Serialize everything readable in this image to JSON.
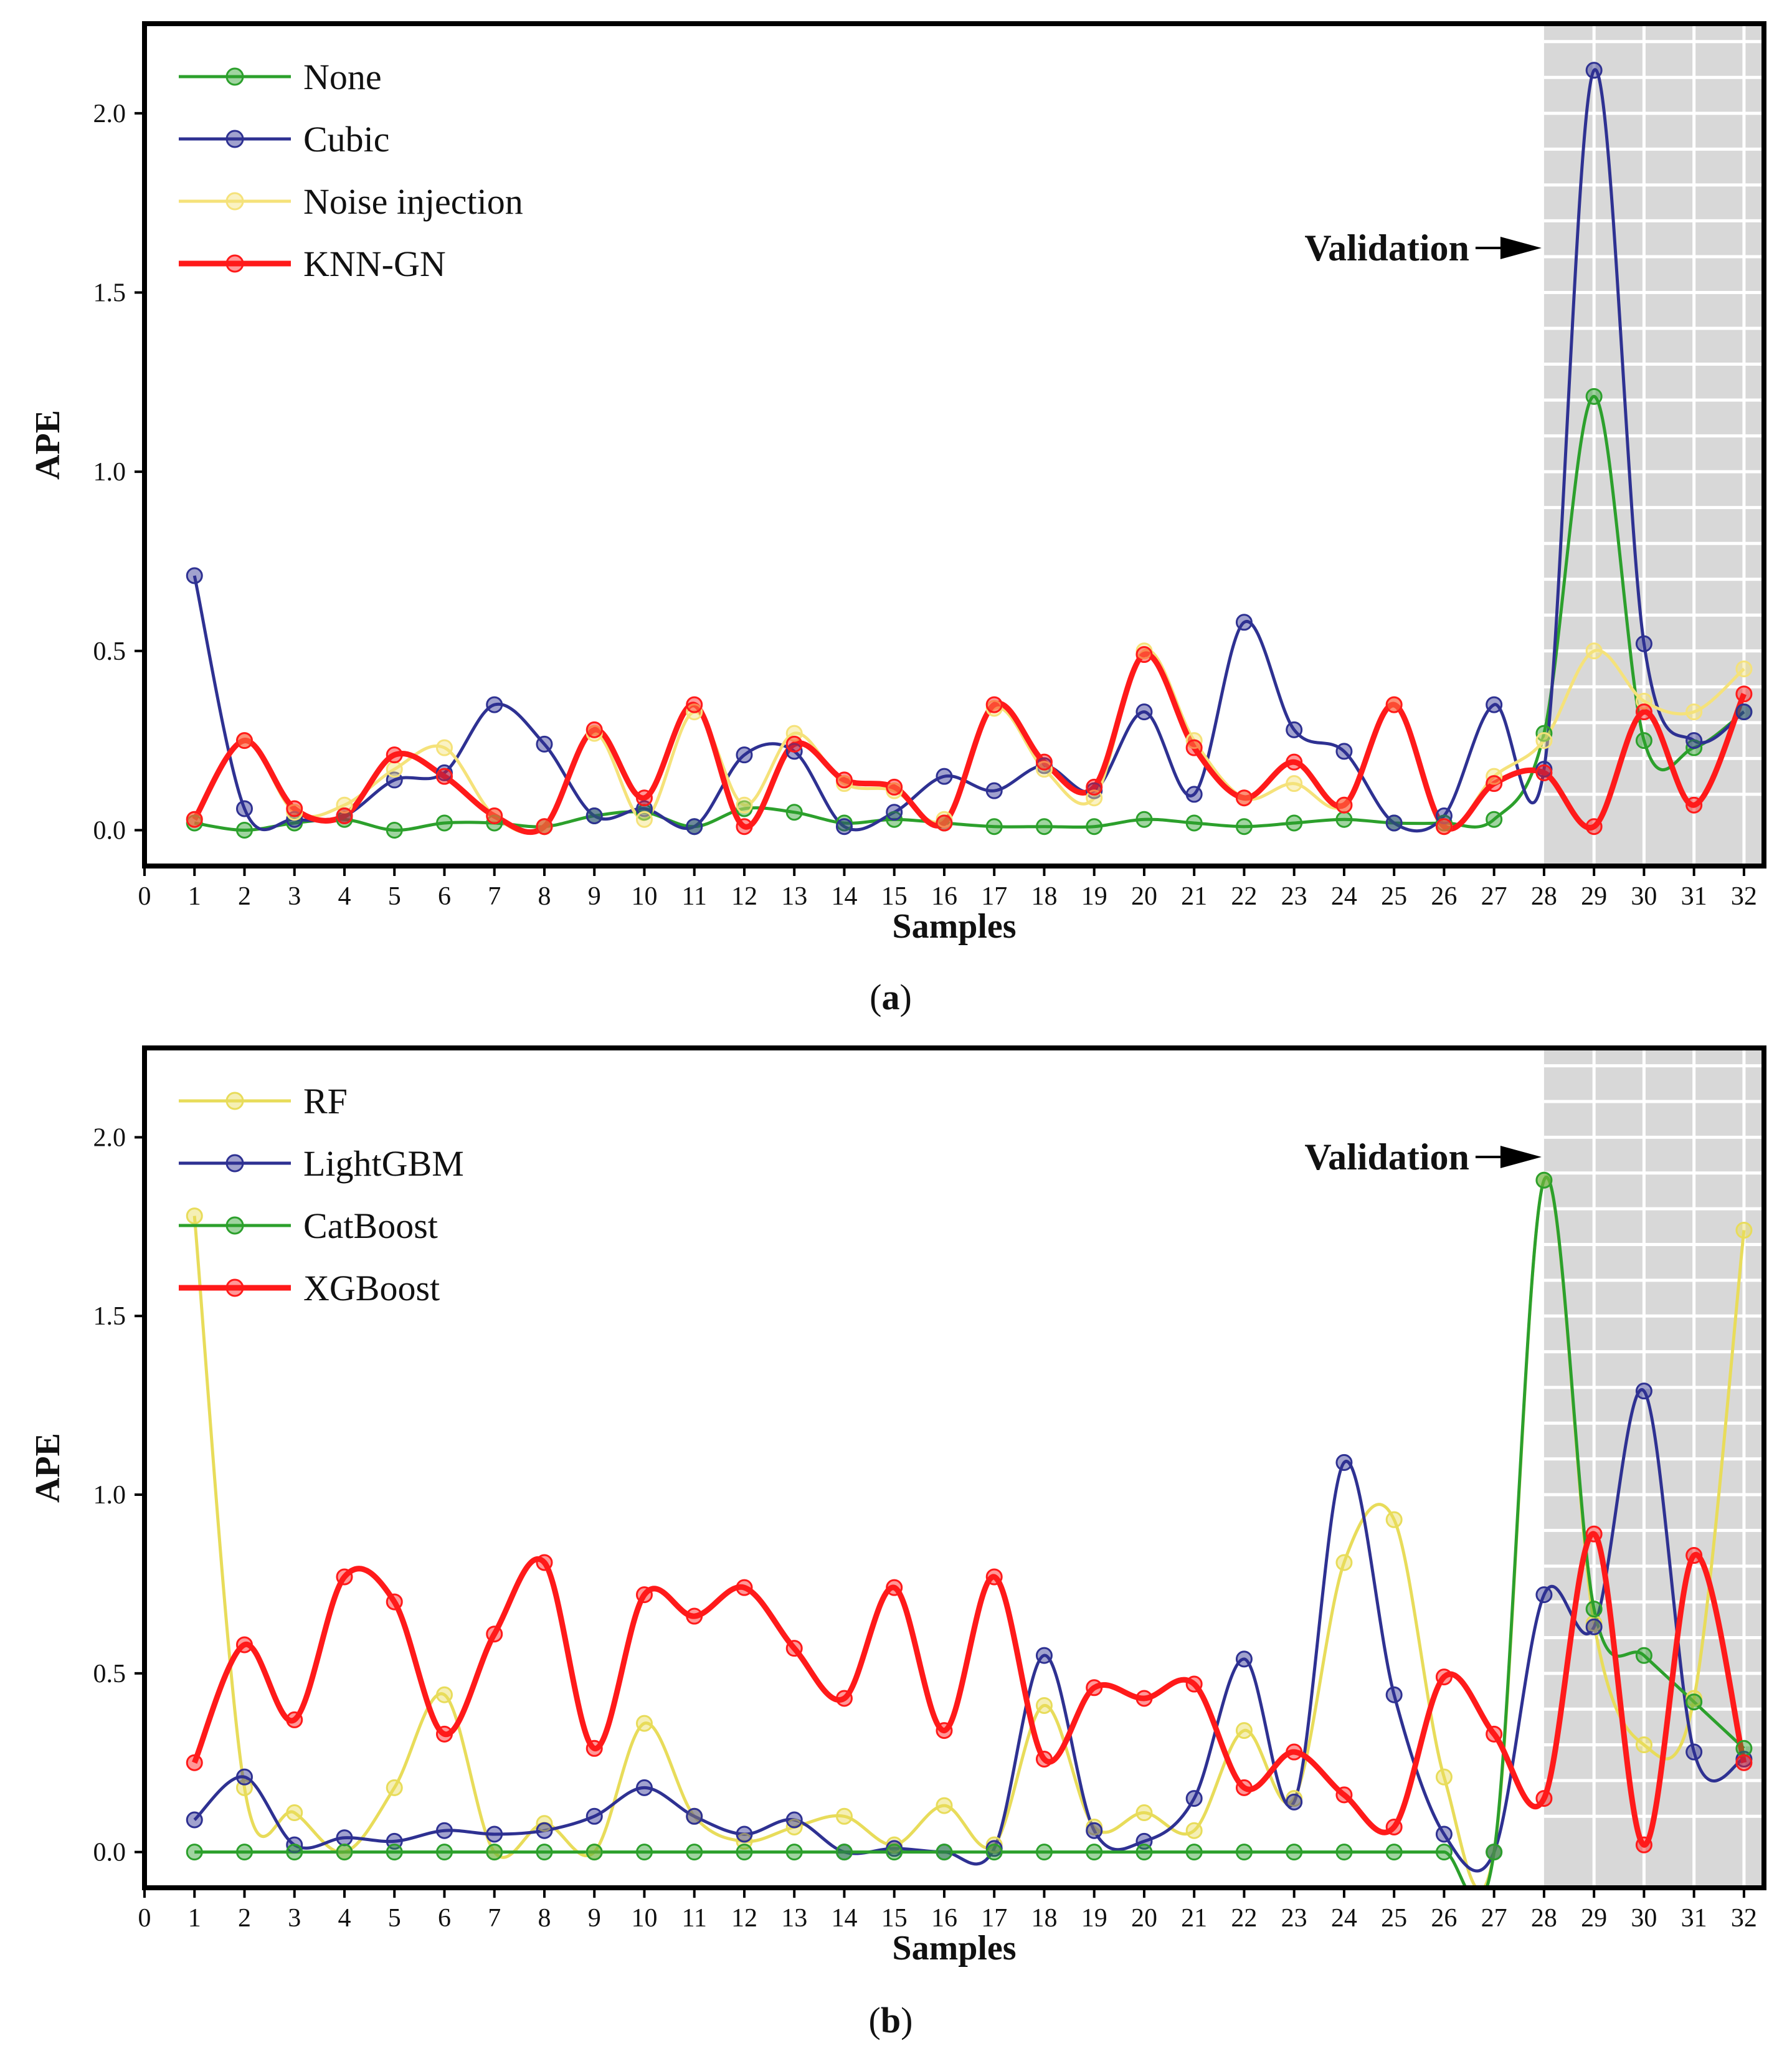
{
  "chart_data": [
    {
      "type": "line",
      "caption": "(a)",
      "caption_letter": "a",
      "xlabel": "Samples",
      "ylabel": "APE",
      "xlim": [
        0,
        32.4
      ],
      "ylim": [
        -0.1,
        2.25
      ],
      "x_ticks": [
        0,
        1,
        2,
        3,
        4,
        5,
        6,
        7,
        8,
        9,
        10,
        11,
        12,
        13,
        14,
        15,
        16,
        17,
        18,
        19,
        20,
        21,
        22,
        23,
        24,
        25,
        26,
        27,
        28,
        29,
        30,
        31,
        32
      ],
      "y_ticks": [
        0.0,
        0.5,
        1.0,
        1.5,
        2.0
      ],
      "y_tick_labels": [
        "0.0",
        "0.5",
        "1.0",
        "1.5",
        "2.0"
      ],
      "validation_start": 28,
      "validation_label": "Validation",
      "legend_position": "top-left",
      "series": [
        {
          "name": "None",
          "color": "#2ca02c",
          "width": 5,
          "values": [
            0.02,
            0.0,
            0.02,
            0.03,
            0.0,
            0.02,
            0.02,
            0.01,
            0.04,
            0.05,
            0.01,
            0.06,
            0.05,
            0.02,
            0.03,
            0.02,
            0.01,
            0.01,
            0.01,
            0.03,
            0.02,
            0.01,
            0.02,
            0.03,
            0.02,
            0.02,
            0.03,
            0.27,
            1.21,
            0.25,
            0.23,
            0.33
          ]
        },
        {
          "name": "Cubic",
          "color": "#2e3192",
          "width": 5,
          "values": [
            0.71,
            0.06,
            0.03,
            0.04,
            0.14,
            0.16,
            0.35,
            0.24,
            0.04,
            0.06,
            0.01,
            0.21,
            0.22,
            0.01,
            0.05,
            0.15,
            0.11,
            0.18,
            0.11,
            0.33,
            0.1,
            0.58,
            0.28,
            0.22,
            0.02,
            0.04,
            0.35,
            0.17,
            2.12,
            0.52,
            0.25,
            0.33
          ]
        },
        {
          "name": "Noise injection",
          "color": "#f5e27a",
          "width": 5,
          "values": [
            0.03,
            0.25,
            0.05,
            0.07,
            0.17,
            0.23,
            0.04,
            0.01,
            0.27,
            0.03,
            0.33,
            0.07,
            0.27,
            0.13,
            0.11,
            0.03,
            0.34,
            0.17,
            0.09,
            0.5,
            0.25,
            0.09,
            0.13,
            0.07,
            0.35,
            0.01,
            0.15,
            0.25,
            0.5,
            0.36,
            0.33,
            0.45
          ]
        },
        {
          "name": "KNN-GN",
          "color": "#ff1a1a",
          "width": 9,
          "values": [
            0.03,
            0.25,
            0.06,
            0.04,
            0.21,
            0.15,
            0.04,
            0.01,
            0.28,
            0.09,
            0.35,
            0.01,
            0.24,
            0.14,
            0.12,
            0.02,
            0.35,
            0.19,
            0.12,
            0.49,
            0.23,
            0.09,
            0.19,
            0.07,
            0.35,
            0.01,
            0.13,
            0.16,
            0.01,
            0.33,
            0.07,
            0.38
          ]
        }
      ]
    },
    {
      "type": "line",
      "caption": "(b)",
      "caption_letter": "b",
      "xlabel": "Samples",
      "ylabel": "APE",
      "xlim": [
        0,
        32.4
      ],
      "ylim": [
        -0.1,
        2.25
      ],
      "x_ticks": [
        0,
        1,
        2,
        3,
        4,
        5,
        6,
        7,
        8,
        9,
        10,
        11,
        12,
        13,
        14,
        15,
        16,
        17,
        18,
        19,
        20,
        21,
        22,
        23,
        24,
        25,
        26,
        27,
        28,
        29,
        30,
        31,
        32
      ],
      "y_ticks": [
        0.0,
        0.5,
        1.0,
        1.5,
        2.0
      ],
      "y_tick_labels": [
        "0.0",
        "0.5",
        "1.0",
        "1.5",
        "2.0"
      ],
      "validation_start": 28,
      "validation_label": "Validation",
      "legend_position": "top-left",
      "series": [
        {
          "name": "RF",
          "color": "#e8dc5a",
          "width": 5,
          "values": [
            1.78,
            0.18,
            0.11,
            0.0,
            0.18,
            0.44,
            0.0,
            0.08,
            0.0,
            0.36,
            0.1,
            0.03,
            0.07,
            0.1,
            0.02,
            0.13,
            0.02,
            0.41,
            0.07,
            0.11,
            0.06,
            0.34,
            0.15,
            0.81,
            0.93,
            0.21,
            0.0,
            1.88,
            0.64,
            0.3,
            0.43,
            1.74
          ]
        },
        {
          "name": "LightGBM",
          "color": "#2e3192",
          "width": 5,
          "values": [
            0.09,
            0.21,
            0.02,
            0.04,
            0.03,
            0.06,
            0.05,
            0.06,
            0.1,
            0.18,
            0.1,
            0.05,
            0.09,
            0.0,
            0.01,
            0.0,
            0.01,
            0.55,
            0.06,
            0.03,
            0.15,
            0.54,
            0.14,
            1.09,
            0.44,
            0.05,
            0.0,
            0.72,
            0.63,
            1.29,
            0.28,
            0.26
          ]
        },
        {
          "name": "CatBoost",
          "color": "#2ca02c",
          "width": 5,
          "values": [
            0.0,
            0.0,
            0.0,
            0.0,
            0.0,
            0.0,
            0.0,
            0.0,
            0.0,
            0.0,
            0.0,
            0.0,
            0.0,
            0.0,
            0.0,
            0.0,
            0.0,
            0.0,
            0.0,
            0.0,
            0.0,
            0.0,
            0.0,
            0.0,
            0.0,
            0.0,
            0.0,
            1.88,
            0.68,
            0.55,
            0.42,
            0.29
          ]
        },
        {
          "name": "XGBoost",
          "color": "#ff1a1a",
          "width": 9,
          "values": [
            0.25,
            0.58,
            0.37,
            0.77,
            0.7,
            0.33,
            0.61,
            0.81,
            0.29,
            0.72,
            0.66,
            0.74,
            0.57,
            0.43,
            0.74,
            0.34,
            0.77,
            0.26,
            0.46,
            0.43,
            0.47,
            0.18,
            0.28,
            0.16,
            0.07,
            0.49,
            0.33,
            0.15,
            0.89,
            0.02,
            0.83,
            0.25
          ]
        }
      ]
    }
  ]
}
